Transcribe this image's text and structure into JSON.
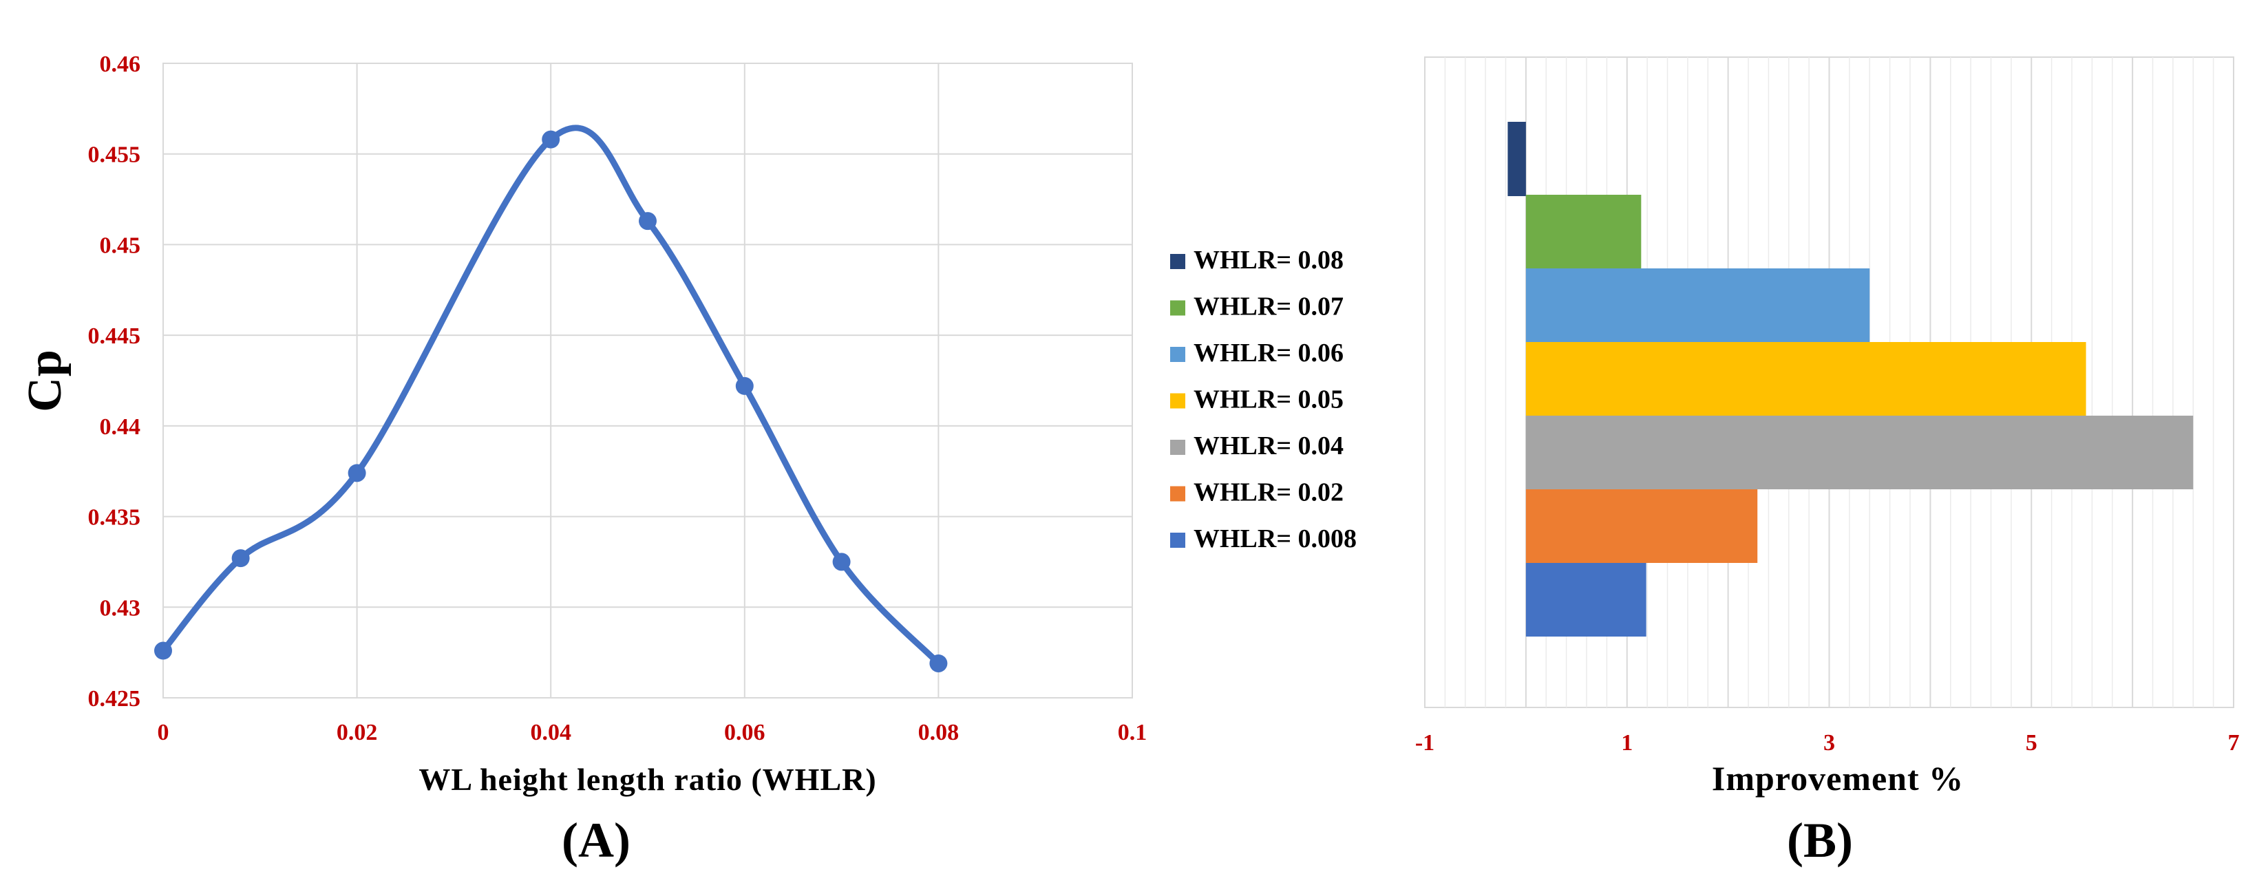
{
  "chart_data": [
    {
      "type": "line",
      "panel_label": "(A)",
      "xlabel": "WL height length ratio (WHLR)",
      "ylabel": "Cp",
      "xlim": [
        0,
        0.1
      ],
      "ylim": [
        0.425,
        0.46
      ],
      "x_ticks": [
        "0",
        "0.02",
        "0.04",
        "0.06",
        "0.08",
        "0.1"
      ],
      "y_ticks": [
        "0.425",
        "0.43",
        "0.435",
        "0.44",
        "0.445",
        "0.45",
        "0.455",
        "0.46"
      ],
      "grid": true,
      "smooth": true,
      "color": "#4472c4",
      "series": [
        {
          "x": [
            0,
            0.008,
            0.02,
            0.04,
            0.05,
            0.06,
            0.07,
            0.08
          ],
          "y": [
            0.4276,
            0.4327,
            0.4374,
            0.4558,
            0.4513,
            0.4422,
            0.4325,
            0.4269
          ]
        }
      ]
    },
    {
      "type": "bar",
      "orientation": "horizontal",
      "panel_label": "(B)",
      "xlabel": "Improvement %",
      "xlim": [
        -1,
        7
      ],
      "x_ticks": [
        "-1",
        "1",
        "3",
        "5",
        "7"
      ],
      "grid": true,
      "legend_position": "left",
      "categories": [
        "WHLR= 0.08",
        "WHLR= 0.07",
        "WHLR= 0.06",
        "WHLR= 0.05",
        "WHLR= 0.04",
        "WHLR= 0.02",
        "WHLR= 0.008"
      ],
      "values": [
        -0.18,
        1.14,
        3.4,
        5.54,
        6.6,
        2.29,
        1.19
      ],
      "colors": [
        "#264478",
        "#70ad47",
        "#5b9bd5",
        "#ffc000",
        "#a5a5a5",
        "#ed7d31",
        "#4472c4"
      ]
    }
  ]
}
